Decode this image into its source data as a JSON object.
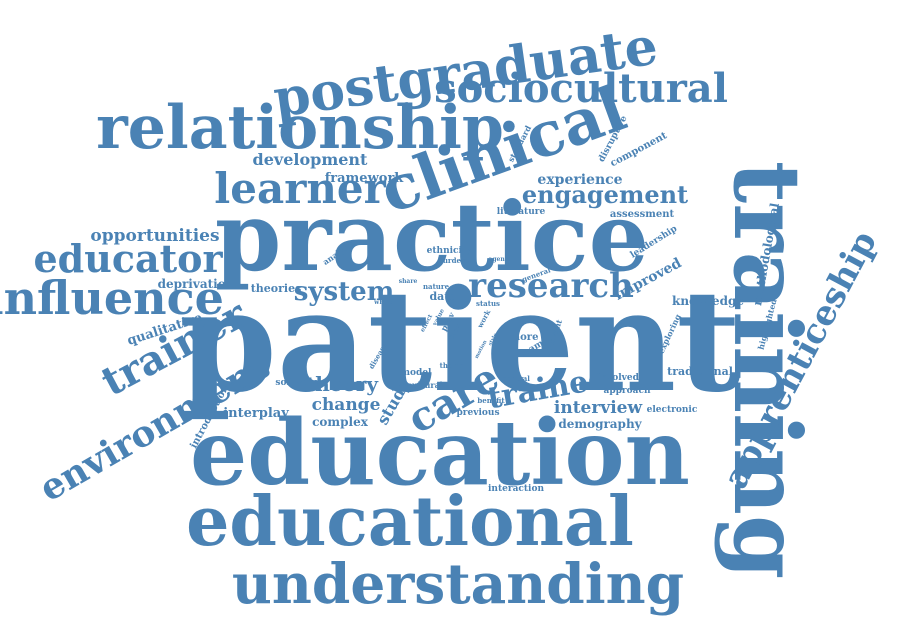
{
  "color": "#4a82b4",
  "words": [
    {
      "text": "patient"
    },
    {
      "text": "practice"
    },
    {
      "text": "education"
    },
    {
      "text": "educational"
    },
    {
      "text": "training"
    },
    {
      "text": "understanding"
    },
    {
      "text": "relationship"
    },
    {
      "text": "postgraduate"
    },
    {
      "text": "clinical"
    },
    {
      "text": "learner"
    },
    {
      "text": "sociocultural"
    },
    {
      "text": "influence"
    },
    {
      "text": "educator"
    },
    {
      "text": "trainer"
    },
    {
      "text": "environment"
    },
    {
      "text": "apprenticeship"
    },
    {
      "text": "care"
    },
    {
      "text": "research"
    },
    {
      "text": "engagement"
    },
    {
      "text": "trainee"
    },
    {
      "text": "system"
    },
    {
      "text": "development"
    },
    {
      "text": "opportunities"
    },
    {
      "text": "theory"
    },
    {
      "text": "change"
    },
    {
      "text": "interview"
    },
    {
      "text": "study"
    },
    {
      "text": "experience"
    },
    {
      "text": "framework"
    },
    {
      "text": "methodological"
    },
    {
      "text": "improved"
    },
    {
      "text": "qualitative"
    },
    {
      "text": "knowledge"
    },
    {
      "text": "interplay"
    },
    {
      "text": "complex"
    },
    {
      "text": "demography"
    },
    {
      "text": "deprivation"
    },
    {
      "text": "theories"
    },
    {
      "text": "assessment"
    },
    {
      "text": "component"
    },
    {
      "text": "disruptive"
    },
    {
      "text": "literature"
    },
    {
      "text": "ethnicity"
    },
    {
      "text": "leadership"
    },
    {
      "text": "data"
    },
    {
      "text": "traditional"
    },
    {
      "text": "introduction"
    },
    {
      "text": "software"
    },
    {
      "text": "electronic"
    },
    {
      "text": "involved"
    },
    {
      "text": "approach"
    },
    {
      "text": "previous"
    },
    {
      "text": "interaction"
    },
    {
      "text": "highlighted"
    },
    {
      "text": "exploring"
    },
    {
      "text": "analysis"
    },
    {
      "text": "standard"
    },
    {
      "text": "burden"
    },
    {
      "text": "agent"
    },
    {
      "text": "nature"
    },
    {
      "text": "status"
    },
    {
      "text": "share"
    },
    {
      "text": "whole"
    },
    {
      "text": "disease"
    },
    {
      "text": "model"
    },
    {
      "text": "cultural"
    },
    {
      "text": "more"
    },
    {
      "text": "team"
    },
    {
      "text": "relevant"
    },
    {
      "text": "central"
    },
    {
      "text": "benefit"
    },
    {
      "text": "theme"
    },
    {
      "text": "general"
    },
    {
      "text": "work"
    },
    {
      "text": "effect"
    },
    {
      "text": "value"
    },
    {
      "text": "prov"
    },
    {
      "text": "factor"
    },
    {
      "text": "motion"
    },
    {
      "text": "style"
    },
    {
      "text": "skill"
    }
  ]
}
